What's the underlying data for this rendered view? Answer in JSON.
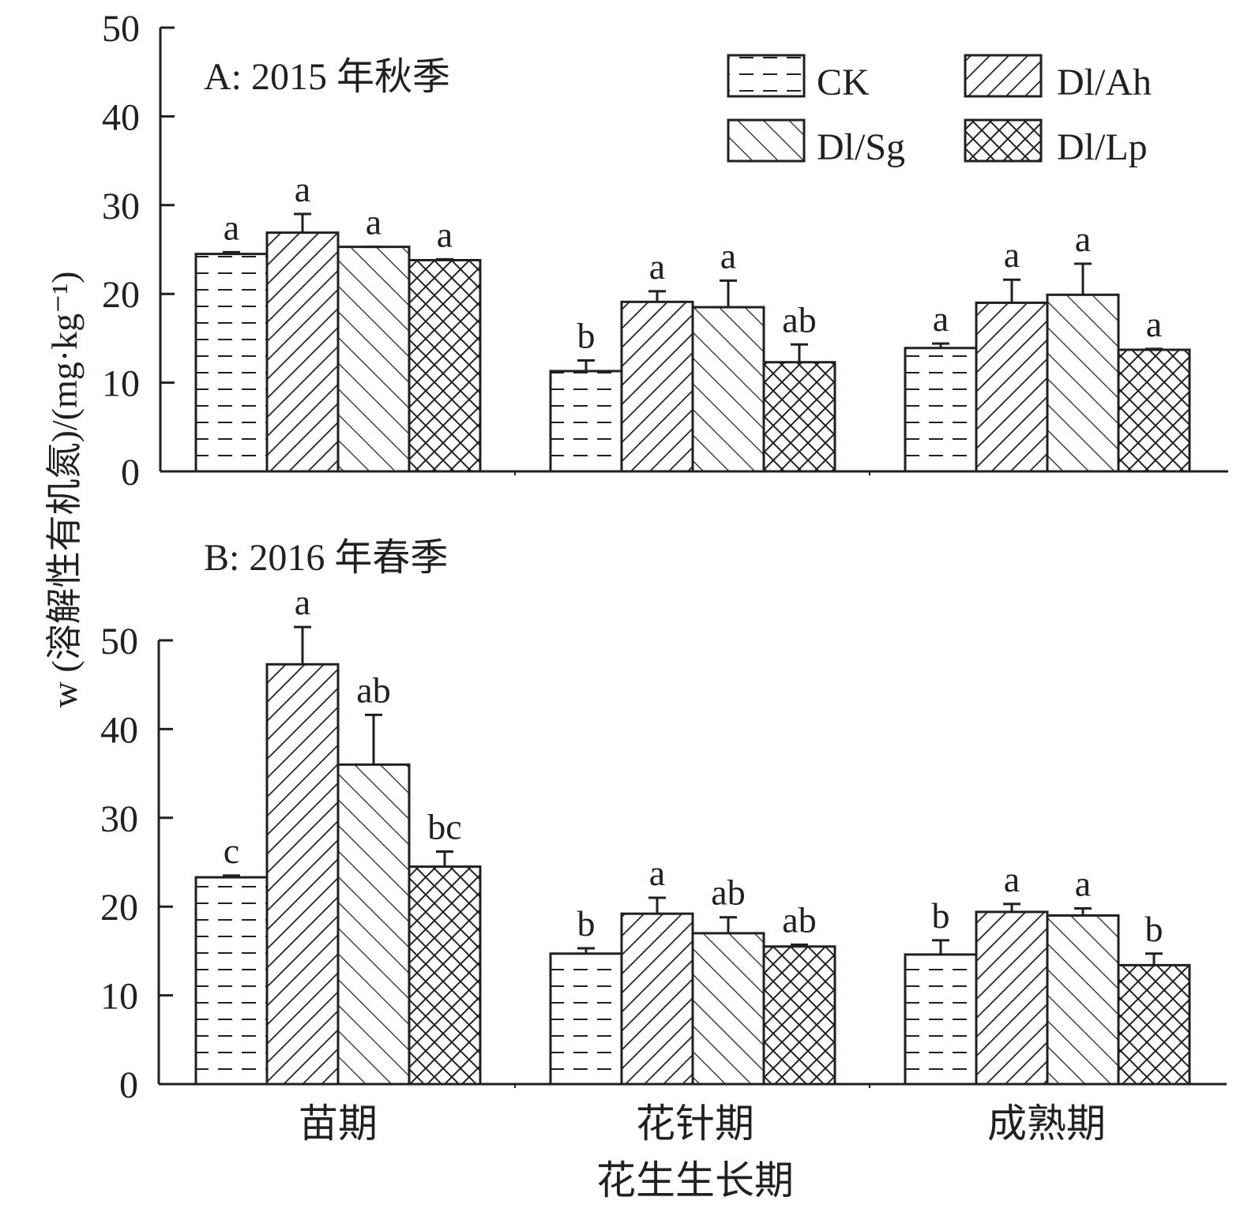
{
  "chart_data": [
    {
      "type": "bar",
      "title": "A: 2015 年秋季",
      "categories": [
        "苗期",
        "花针期",
        "成熟期"
      ],
      "ylim": [
        0,
        50
      ],
      "yticks": [
        "0",
        "10",
        "20",
        "30",
        "40",
        "50"
      ],
      "series": [
        {
          "name": "CK",
          "values": [
            24.5,
            11.3,
            13.9
          ],
          "errors": [
            0.2,
            1.2,
            0.5
          ],
          "letters": [
            "a",
            "b",
            "a"
          ]
        },
        {
          "name": "Dl/Ah",
          "values": [
            26.9,
            19.1,
            19.0
          ],
          "errors": [
            2.1,
            1.2,
            2.6
          ],
          "letters": [
            "a",
            "a",
            "a"
          ]
        },
        {
          "name": "Dl/Sg",
          "values": [
            25.3,
            18.5,
            19.9
          ],
          "errors": [
            0.0,
            3.0,
            3.5
          ],
          "letters": [
            "a",
            "a",
            "a"
          ]
        },
        {
          "name": "Dl/Lp",
          "values": [
            23.8,
            12.3,
            13.7
          ],
          "errors": [
            0.1,
            2.0,
            0.1
          ],
          "letters": [
            "a",
            "ab",
            "a"
          ]
        }
      ]
    },
    {
      "type": "bar",
      "title": "B: 2016 年春季",
      "categories": [
        "苗期",
        "花针期",
        "成熟期"
      ],
      "ylim": [
        0,
        50
      ],
      "yticks": [
        "0",
        "10",
        "20",
        "30",
        "40",
        "50"
      ],
      "series": [
        {
          "name": "CK",
          "values": [
            23.3,
            14.7,
            14.6
          ],
          "errors": [
            0.2,
            0.6,
            1.6
          ],
          "letters": [
            "c",
            "b",
            "b"
          ]
        },
        {
          "name": "Dl/Ah",
          "values": [
            47.3,
            19.2,
            19.4
          ],
          "errors": [
            4.2,
            1.8,
            0.9
          ],
          "letters": [
            "a",
            "a",
            "a"
          ]
        },
        {
          "name": "Dl/Sg",
          "values": [
            36.0,
            17.0,
            19.0
          ],
          "errors": [
            5.6,
            1.8,
            0.8
          ],
          "letters": [
            "ab",
            "ab",
            "a"
          ]
        },
        {
          "name": "Dl/Lp",
          "values": [
            24.5,
            15.5,
            13.4
          ],
          "errors": [
            1.7,
            0.2,
            1.3
          ],
          "letters": [
            "bc",
            "ab",
            "b"
          ]
        }
      ]
    }
  ],
  "axes": {
    "ylabel": "w (溶解性有机氮)/(mg·kg⁻¹)",
    "xlabel": "花生生长期"
  },
  "legend": [
    "CK",
    "Dl/Ah",
    "Dl/Sg",
    "Dl/Lp"
  ],
  "patterns": [
    "dashes",
    "forward-hatch",
    "back-hatch",
    "crosshatch"
  ],
  "colors": {
    "ink": "#231f20",
    "background": "#ffffff"
  }
}
